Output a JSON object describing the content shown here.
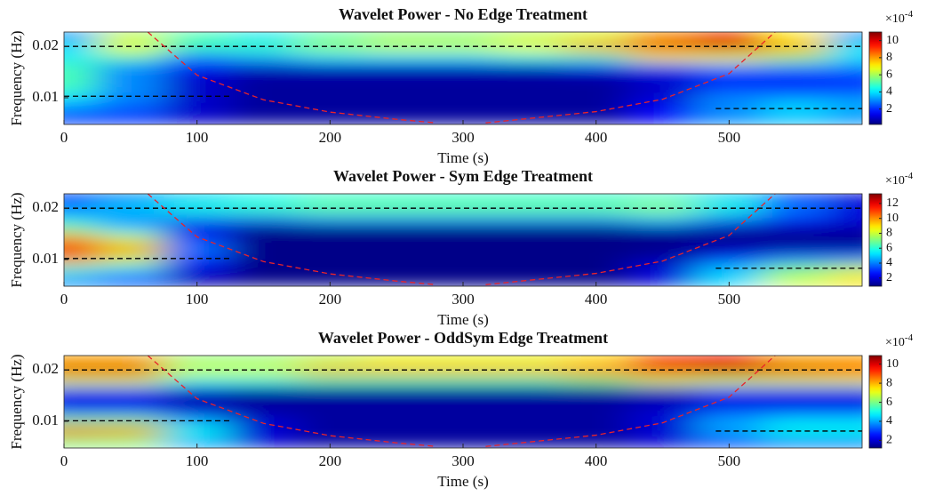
{
  "chart_data": [
    {
      "type": "heatmap",
      "title": "Wavelet Power - No Edge Treatment",
      "xlabel": "Time (s)",
      "ylabel": "Frequency (Hz)",
      "xlim": [
        0,
        600
      ],
      "ylim": [
        0.0048,
        0.0228
      ],
      "xticks": [
        0,
        100,
        200,
        300,
        400,
        500
      ],
      "yticks": [
        0.01,
        0.02
      ],
      "colorbar_label": "×10",
      "colorbar_exponent": "-4",
      "clim": [
        0.2,
        11
      ],
      "cticks": [
        2,
        4,
        6,
        8,
        10
      ],
      "x": [
        0,
        50,
        100,
        150,
        200,
        250,
        300,
        350,
        400,
        450,
        500,
        550,
        600
      ],
      "y": [
        0.022,
        0.02,
        0.018,
        0.016,
        0.014,
        0.012,
        0.01,
        0.008,
        0.006
      ],
      "z": [
        [
          3,
          6,
          5,
          4,
          5,
          5.5,
          5.5,
          6,
          6.5,
          8,
          9,
          7,
          3
        ],
        [
          4,
          7,
          5,
          5,
          6,
          6.5,
          6.5,
          7,
          8,
          10,
          10.5,
          8,
          4
        ],
        [
          4,
          5,
          3,
          3.5,
          4,
          4,
          4,
          4.5,
          5,
          7,
          7,
          6,
          4
        ],
        [
          5,
          3,
          1.5,
          1,
          1,
          1,
          1,
          1,
          1.5,
          2,
          3,
          3,
          3
        ],
        [
          5,
          3,
          1,
          0.5,
          0.5,
          0.5,
          0.5,
          0.5,
          0.5,
          1,
          1.5,
          1.5,
          2
        ],
        [
          5,
          3,
          1,
          0.5,
          0.5,
          0.5,
          0.5,
          0.5,
          0.5,
          1,
          2,
          2,
          2
        ],
        [
          4,
          3,
          1,
          0.5,
          0.5,
          0.5,
          0.5,
          0.5,
          0.5,
          1,
          3,
          3,
          3
        ],
        [
          3,
          2.5,
          1,
          0.5,
          0.5,
          0.5,
          0.5,
          0.5,
          0.5,
          1.5,
          3,
          4,
          3.5
        ],
        [
          2,
          2,
          1,
          0.5,
          0.5,
          0.5,
          0.5,
          0.5,
          0.5,
          1.5,
          3,
          3.5,
          3
        ]
      ],
      "reference_lines": [
        {
          "x": [
            0,
            600
          ],
          "y": 0.02
        },
        {
          "x": [
            0,
            125
          ],
          "y": 0.0103
        },
        {
          "x": [
            490,
            600
          ],
          "y": 0.0079
        }
      ],
      "coi": {
        "x": [
          63,
          100,
          150,
          200,
          250,
          280,
          null,
          317,
          400,
          450,
          500,
          535
        ],
        "y": [
          0.0228,
          0.0144,
          0.0096,
          0.0072,
          0.0058,
          0.0051,
          null,
          0.0051,
          0.0073,
          0.0097,
          0.0147,
          0.0229
        ]
      }
    },
    {
      "type": "heatmap",
      "title": "Wavelet Power - Sym Edge Treatment",
      "xlabel": "Time (s)",
      "ylabel": "Frequency (Hz)",
      "xlim": [
        0,
        600
      ],
      "ylim": [
        0.0048,
        0.0228
      ],
      "xticks": [
        0,
        100,
        200,
        300,
        400,
        500
      ],
      "yticks": [
        0.01,
        0.02
      ],
      "colorbar_label": "×10",
      "colorbar_exponent": "-4",
      "clim": [
        0.9,
        13.3
      ],
      "cticks": [
        2,
        4,
        6,
        8,
        10,
        12
      ],
      "x": [
        0,
        50,
        100,
        150,
        200,
        250,
        300,
        350,
        400,
        450,
        500,
        550,
        600
      ],
      "y": [
        0.022,
        0.02,
        0.018,
        0.016,
        0.014,
        0.012,
        0.01,
        0.008,
        0.006
      ],
      "z": [
        [
          3,
          4,
          5,
          5.5,
          6,
          6,
          6,
          6,
          6,
          6,
          5,
          3,
          2
        ],
        [
          4,
          5,
          6,
          6.5,
          7,
          7,
          7,
          7,
          7,
          7.5,
          6,
          4,
          2
        ],
        [
          5,
          4,
          4,
          4,
          4.5,
          4.5,
          4.5,
          4.5,
          4.5,
          5,
          4,
          3,
          2
        ],
        [
          7,
          5,
          2,
          1,
          1,
          1,
          1,
          1,
          1,
          1.5,
          1.5,
          1.5,
          1.5
        ],
        [
          10,
          8,
          3,
          1,
          1,
          1,
          1,
          1,
          1,
          1,
          1,
          1,
          1
        ],
        [
          12,
          10,
          4,
          1,
          1,
          1,
          1,
          1,
          1,
          1,
          1.5,
          1.5,
          1.5
        ],
        [
          10,
          8,
          3,
          1,
          1,
          1,
          1,
          1,
          1,
          1.5,
          3,
          4,
          4
        ],
        [
          6,
          5,
          2,
          1,
          1,
          1,
          1,
          1,
          1,
          2,
          5,
          7,
          8
        ],
        [
          4,
          3,
          1.5,
          1,
          1,
          1,
          1,
          1,
          1,
          2,
          5,
          8,
          9
        ]
      ],
      "reference_lines": [
        {
          "x": [
            0,
            600
          ],
          "y": 0.02
        },
        {
          "x": [
            0,
            125
          ],
          "y": 0.0102
        },
        {
          "x": [
            490,
            600
          ],
          "y": 0.0083
        }
      ],
      "coi": {
        "x": [
          63,
          100,
          150,
          200,
          250,
          280,
          null,
          317,
          400,
          450,
          500,
          535
        ],
        "y": [
          0.0228,
          0.0144,
          0.0096,
          0.0072,
          0.0058,
          0.0051,
          null,
          0.0051,
          0.0073,
          0.0097,
          0.0147,
          0.0229
        ]
      }
    },
    {
      "type": "heatmap",
      "title": "Wavelet Power - OddSym Edge Treatment",
      "xlabel": "Time (s)",
      "ylabel": "Frequency (Hz)",
      "xlim": [
        0,
        600
      ],
      "ylim": [
        0.0048,
        0.0228
      ],
      "xticks": [
        0,
        100,
        200,
        300,
        400,
        500
      ],
      "yticks": [
        0.01,
        0.02
      ],
      "colorbar_label": "×10",
      "colorbar_exponent": "-4",
      "clim": [
        1.2,
        10.9
      ],
      "cticks": [
        2,
        4,
        6,
        8,
        10
      ],
      "x": [
        0,
        50,
        100,
        150,
        200,
        250,
        300,
        350,
        400,
        450,
        500,
        550,
        600
      ],
      "y": [
        0.022,
        0.02,
        0.018,
        0.016,
        0.014,
        0.012,
        0.01,
        0.008,
        0.006
      ],
      "z": [
        [
          8,
          8,
          6,
          6,
          6.5,
          7,
          7,
          7,
          7.5,
          9,
          9.5,
          8,
          8
        ],
        [
          10,
          10,
          7,
          7,
          8,
          8,
          8,
          8,
          8.5,
          10,
          10.5,
          10,
          9.5
        ],
        [
          7,
          7,
          5,
          5,
          5.5,
          5.5,
          5.5,
          5.5,
          6,
          7,
          7,
          7,
          7
        ],
        [
          3,
          3,
          2,
          1.5,
          1.5,
          1.5,
          1.5,
          1.5,
          1.5,
          2,
          3,
          3,
          3
        ],
        [
          2,
          2,
          1.5,
          1.5,
          1.5,
          1.5,
          1.5,
          1.5,
          1.5,
          1.5,
          2,
          2,
          2
        ],
        [
          3,
          3,
          2,
          1.5,
          1.5,
          1.5,
          1.5,
          1.5,
          1.5,
          2,
          3,
          3,
          3
        ],
        [
          6,
          6,
          4,
          2,
          1.5,
          1.5,
          1.5,
          1.5,
          1.5,
          2,
          4,
          4.5,
          4.5
        ],
        [
          9,
          8.5,
          5,
          2,
          1.5,
          1.5,
          1.5,
          1.5,
          1.5,
          2,
          4,
          5,
          5
        ],
        [
          6,
          6,
          4,
          2,
          1.5,
          1.5,
          1.5,
          1.5,
          1.5,
          2,
          3,
          3.5,
          3.5
        ]
      ],
      "reference_lines": [
        {
          "x": [
            0,
            600
          ],
          "y": 0.02
        },
        {
          "x": [
            0,
            125
          ],
          "y": 0.0101
        },
        {
          "x": [
            490,
            600
          ],
          "y": 0.0081
        }
      ],
      "coi": {
        "x": [
          63,
          100,
          150,
          200,
          250,
          280,
          null,
          317,
          400,
          450,
          500,
          535
        ],
        "y": [
          0.0228,
          0.0144,
          0.0096,
          0.0072,
          0.0058,
          0.0051,
          null,
          0.0051,
          0.0073,
          0.0097,
          0.0147,
          0.0229
        ]
      }
    }
  ]
}
